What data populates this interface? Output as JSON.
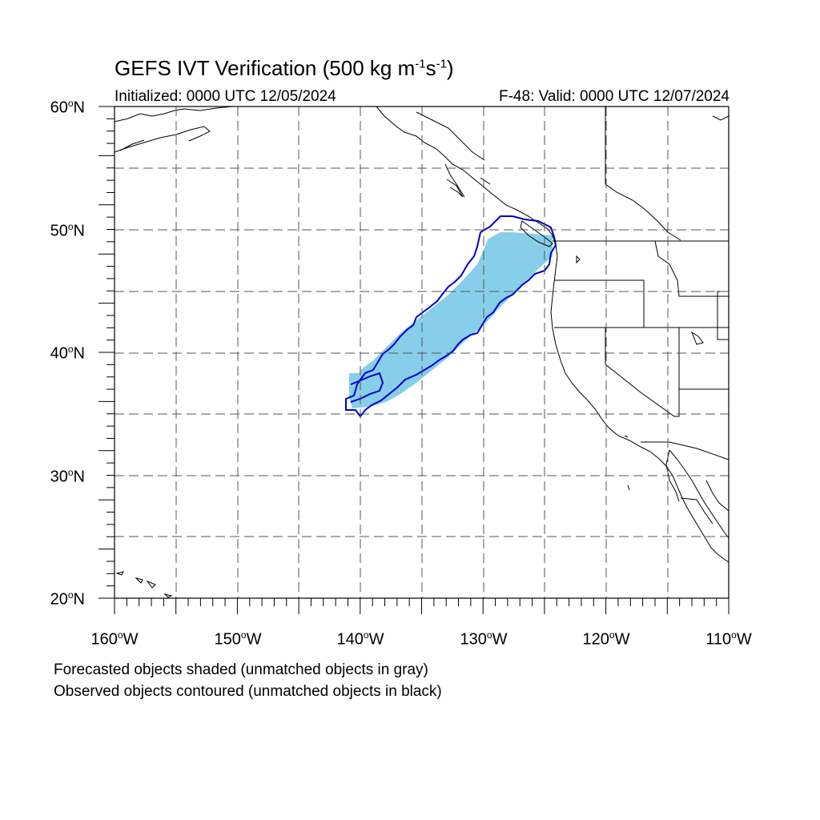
{
  "title": {
    "main": "GEFS IVT Verification (500 kg m",
    "exp1": "-1",
    "mid": "s",
    "exp2": "-1",
    "close": ")"
  },
  "initialized": "Initialized: 0000 UTC 12/05/2024",
  "valid": "F-48: Valid: 0000 UTC 12/07/2024",
  "latitude_labels": [
    {
      "num": "60",
      "deg": "o",
      "hem": "N"
    },
    {
      "num": "50",
      "deg": "o",
      "hem": "N"
    },
    {
      "num": "40",
      "deg": "o",
      "hem": "N"
    },
    {
      "num": "30",
      "deg": "o",
      "hem": "N"
    },
    {
      "num": "20",
      "deg": "o",
      "hem": "N"
    }
  ],
  "longitude_labels": [
    {
      "num": "160",
      "deg": "o",
      "hem": "W"
    },
    {
      "num": "150",
      "deg": "o",
      "hem": "W"
    },
    {
      "num": "140",
      "deg": "o",
      "hem": "W"
    },
    {
      "num": "130",
      "deg": "o",
      "hem": "W"
    },
    {
      "num": "120",
      "deg": "o",
      "hem": "W"
    },
    {
      "num": "110",
      "deg": "o",
      "hem": "W"
    }
  ],
  "captions": [
    "Forecasted objects shaded (unmatched objects in gray)",
    "Observed objects contoured (unmatched objects in black)"
  ],
  "colors": {
    "forecast_shading": "#87CEEB",
    "observed_contour": "#0000CC",
    "coastline": "#000000",
    "grid": "#555555"
  }
}
